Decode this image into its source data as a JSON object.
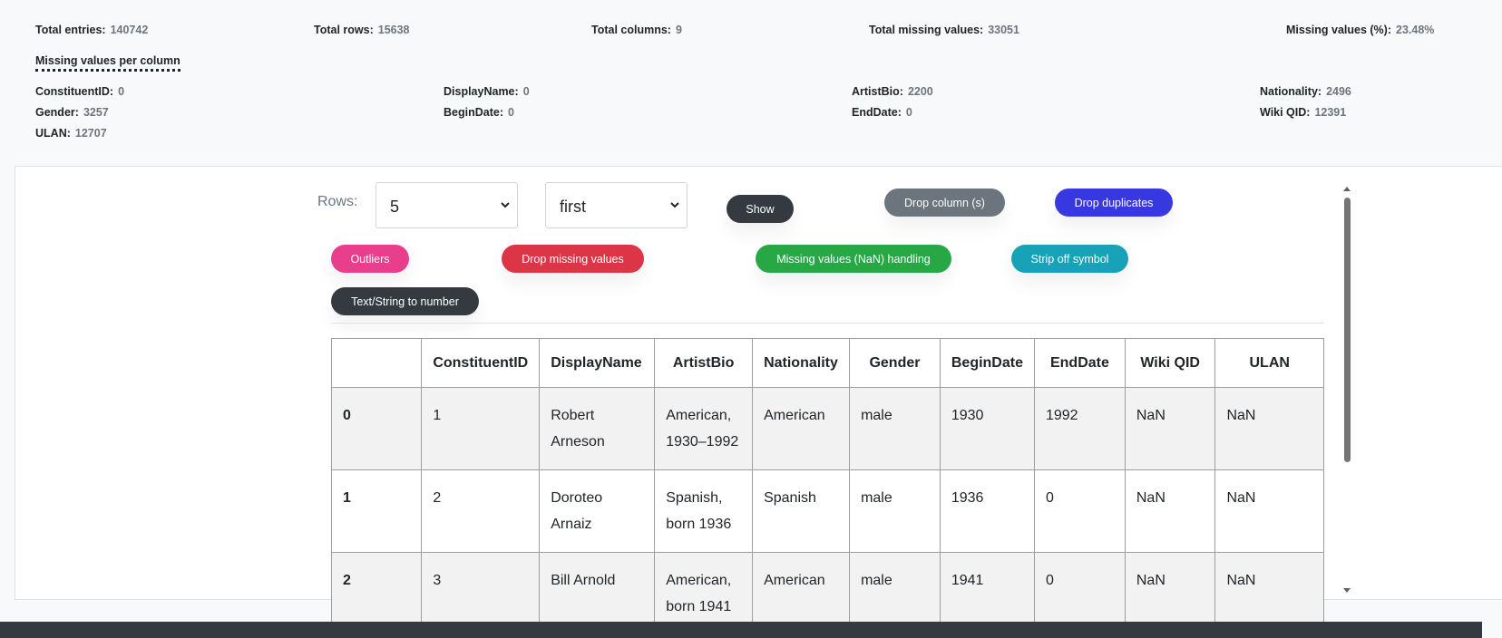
{
  "stats": [
    {
      "label": "Total entries:",
      "value": "140742"
    },
    {
      "label": "Total rows:",
      "value": "15638"
    },
    {
      "label": "Total columns:",
      "value": "9"
    },
    {
      "label": "Total missing values:",
      "value": "33051"
    },
    {
      "label": "Missing values (%):",
      "value": "23.48%"
    }
  ],
  "missing_heading": "Missing values per column",
  "missing_per_column": [
    {
      "label": "ConstituentID:",
      "value": "0"
    },
    {
      "label": "DisplayName:",
      "value": "0"
    },
    {
      "label": "ArtistBio:",
      "value": "2200"
    },
    {
      "label": "Nationality:",
      "value": "2496"
    },
    {
      "label": "Gender:",
      "value": "3257"
    },
    {
      "label": "BeginDate:",
      "value": "0"
    },
    {
      "label": "EndDate:",
      "value": "0"
    },
    {
      "label": "Wiki QID:",
      "value": "12391"
    },
    {
      "label": "ULAN:",
      "value": "12707"
    }
  ],
  "controls": {
    "rows_label": "Rows:",
    "rows_value": "5",
    "position_value": "first",
    "show_label": "Show",
    "drop_column_label": "Drop column (s)",
    "drop_duplicates_label": "Drop duplicates",
    "outliers_label": "Outliers",
    "drop_missing_label": "Drop missing values",
    "nan_handling_label": "Missing values (NaN) handling",
    "strip_symbol_label": "Strip off symbol",
    "text_to_number_label": "Text/String to number"
  },
  "colors": {
    "show": "#343a40",
    "drop_column": "#6c757d",
    "drop_duplicates": "#3838e0",
    "outliers": "#e83e8c",
    "drop_missing": "#dc3545",
    "nan_handling": "#28a745",
    "strip_symbol": "#17a2b8",
    "text_to_number": "#343a40"
  },
  "table": {
    "headers": [
      "",
      "ConstituentID",
      "DisplayName",
      "ArtistBio",
      "Nationality",
      "Gender",
      "BeginDate",
      "EndDate",
      "Wiki QID",
      "ULAN"
    ],
    "rows": [
      [
        "0",
        "1",
        "Robert Arneson",
        "American, 1930–1992",
        "American",
        "male",
        "1930",
        "1992",
        "NaN",
        "NaN"
      ],
      [
        "1",
        "2",
        "Doroteo Arnaiz",
        "Spanish, born 1936",
        "Spanish",
        "male",
        "1936",
        "0",
        "NaN",
        "NaN"
      ],
      [
        "2",
        "3",
        "Bill Arnold",
        "American, born 1941",
        "American",
        "male",
        "1941",
        "0",
        "NaN",
        "NaN"
      ]
    ]
  }
}
